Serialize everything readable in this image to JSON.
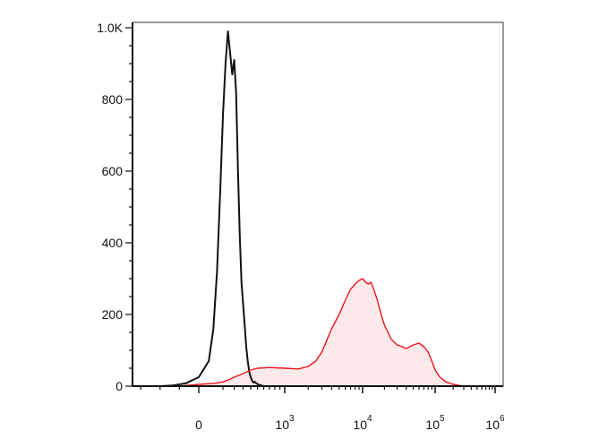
{
  "chart_data": {
    "type": "area",
    "title": "",
    "xlabel": "",
    "ylabel": "",
    "x_scale": "biexponential",
    "xlim": [
      -100,
      1000000
    ],
    "ylim": [
      0,
      1000
    ],
    "grid": false,
    "legend": "none",
    "x_tick_labels": [
      {
        "base": "0",
        "exp": "",
        "value": 0
      },
      {
        "base": "10",
        "exp": "3",
        "value": 1000
      },
      {
        "base": "10",
        "exp": "4",
        "value": 10000
      },
      {
        "base": "10",
        "exp": "5",
        "value": 100000
      },
      {
        "base": "10",
        "exp": "6",
        "value": 1000000
      }
    ],
    "y_tick_labels": [
      {
        "label": "0",
        "value": 0
      },
      {
        "label": "200",
        "value": 200
      },
      {
        "label": "400",
        "value": 400
      },
      {
        "label": "600",
        "value": 600
      },
      {
        "label": "800",
        "value": 800
      },
      {
        "label": "1.0K",
        "value": 1000
      }
    ],
    "series": [
      {
        "role": "control",
        "color": "#111111",
        "fill": "none",
        "x": [
          -60,
          -40,
          -20,
          0,
          20,
          40,
          60,
          80,
          100,
          120,
          140,
          160,
          180,
          200,
          220,
          240,
          260,
          280,
          300,
          320,
          340,
          360,
          380,
          400,
          420,
          440,
          460,
          480,
          500,
          520,
          540,
          560,
          580,
          600
        ],
        "y": [
          0,
          2,
          8,
          25,
          70,
          160,
          320,
          540,
          760,
          900,
          990,
          930,
          870,
          910,
          820,
          600,
          420,
          290,
          230,
          170,
          110,
          70,
          40,
          25,
          15,
          10,
          12,
          8,
          6,
          4,
          3,
          2,
          1,
          0
        ]
      },
      {
        "role": "stained",
        "color": "#e8161b",
        "fill": "#fde8ea",
        "x": [
          -30,
          0,
          50,
          100,
          150,
          200,
          300,
          400,
          500,
          700,
          1000,
          1500,
          2000,
          2500,
          3000,
          3500,
          4000,
          5000,
          6000,
          7000,
          8000,
          9000,
          10000,
          11000,
          12000,
          13000,
          14000,
          16000,
          18000,
          20000,
          25000,
          30000,
          35000,
          40000,
          50000,
          60000,
          70000,
          80000,
          90000,
          100000,
          120000,
          150000,
          200000,
          250000,
          300000
        ],
        "y": [
          0,
          5,
          8,
          12,
          18,
          25,
          35,
          45,
          50,
          52,
          50,
          48,
          55,
          70,
          95,
          130,
          160,
          200,
          240,
          270,
          285,
          295,
          300,
          290,
          285,
          290,
          275,
          240,
          200,
          170,
          130,
          115,
          110,
          105,
          115,
          120,
          110,
          95,
          70,
          45,
          25,
          12,
          5,
          2,
          0
        ]
      }
    ]
  }
}
